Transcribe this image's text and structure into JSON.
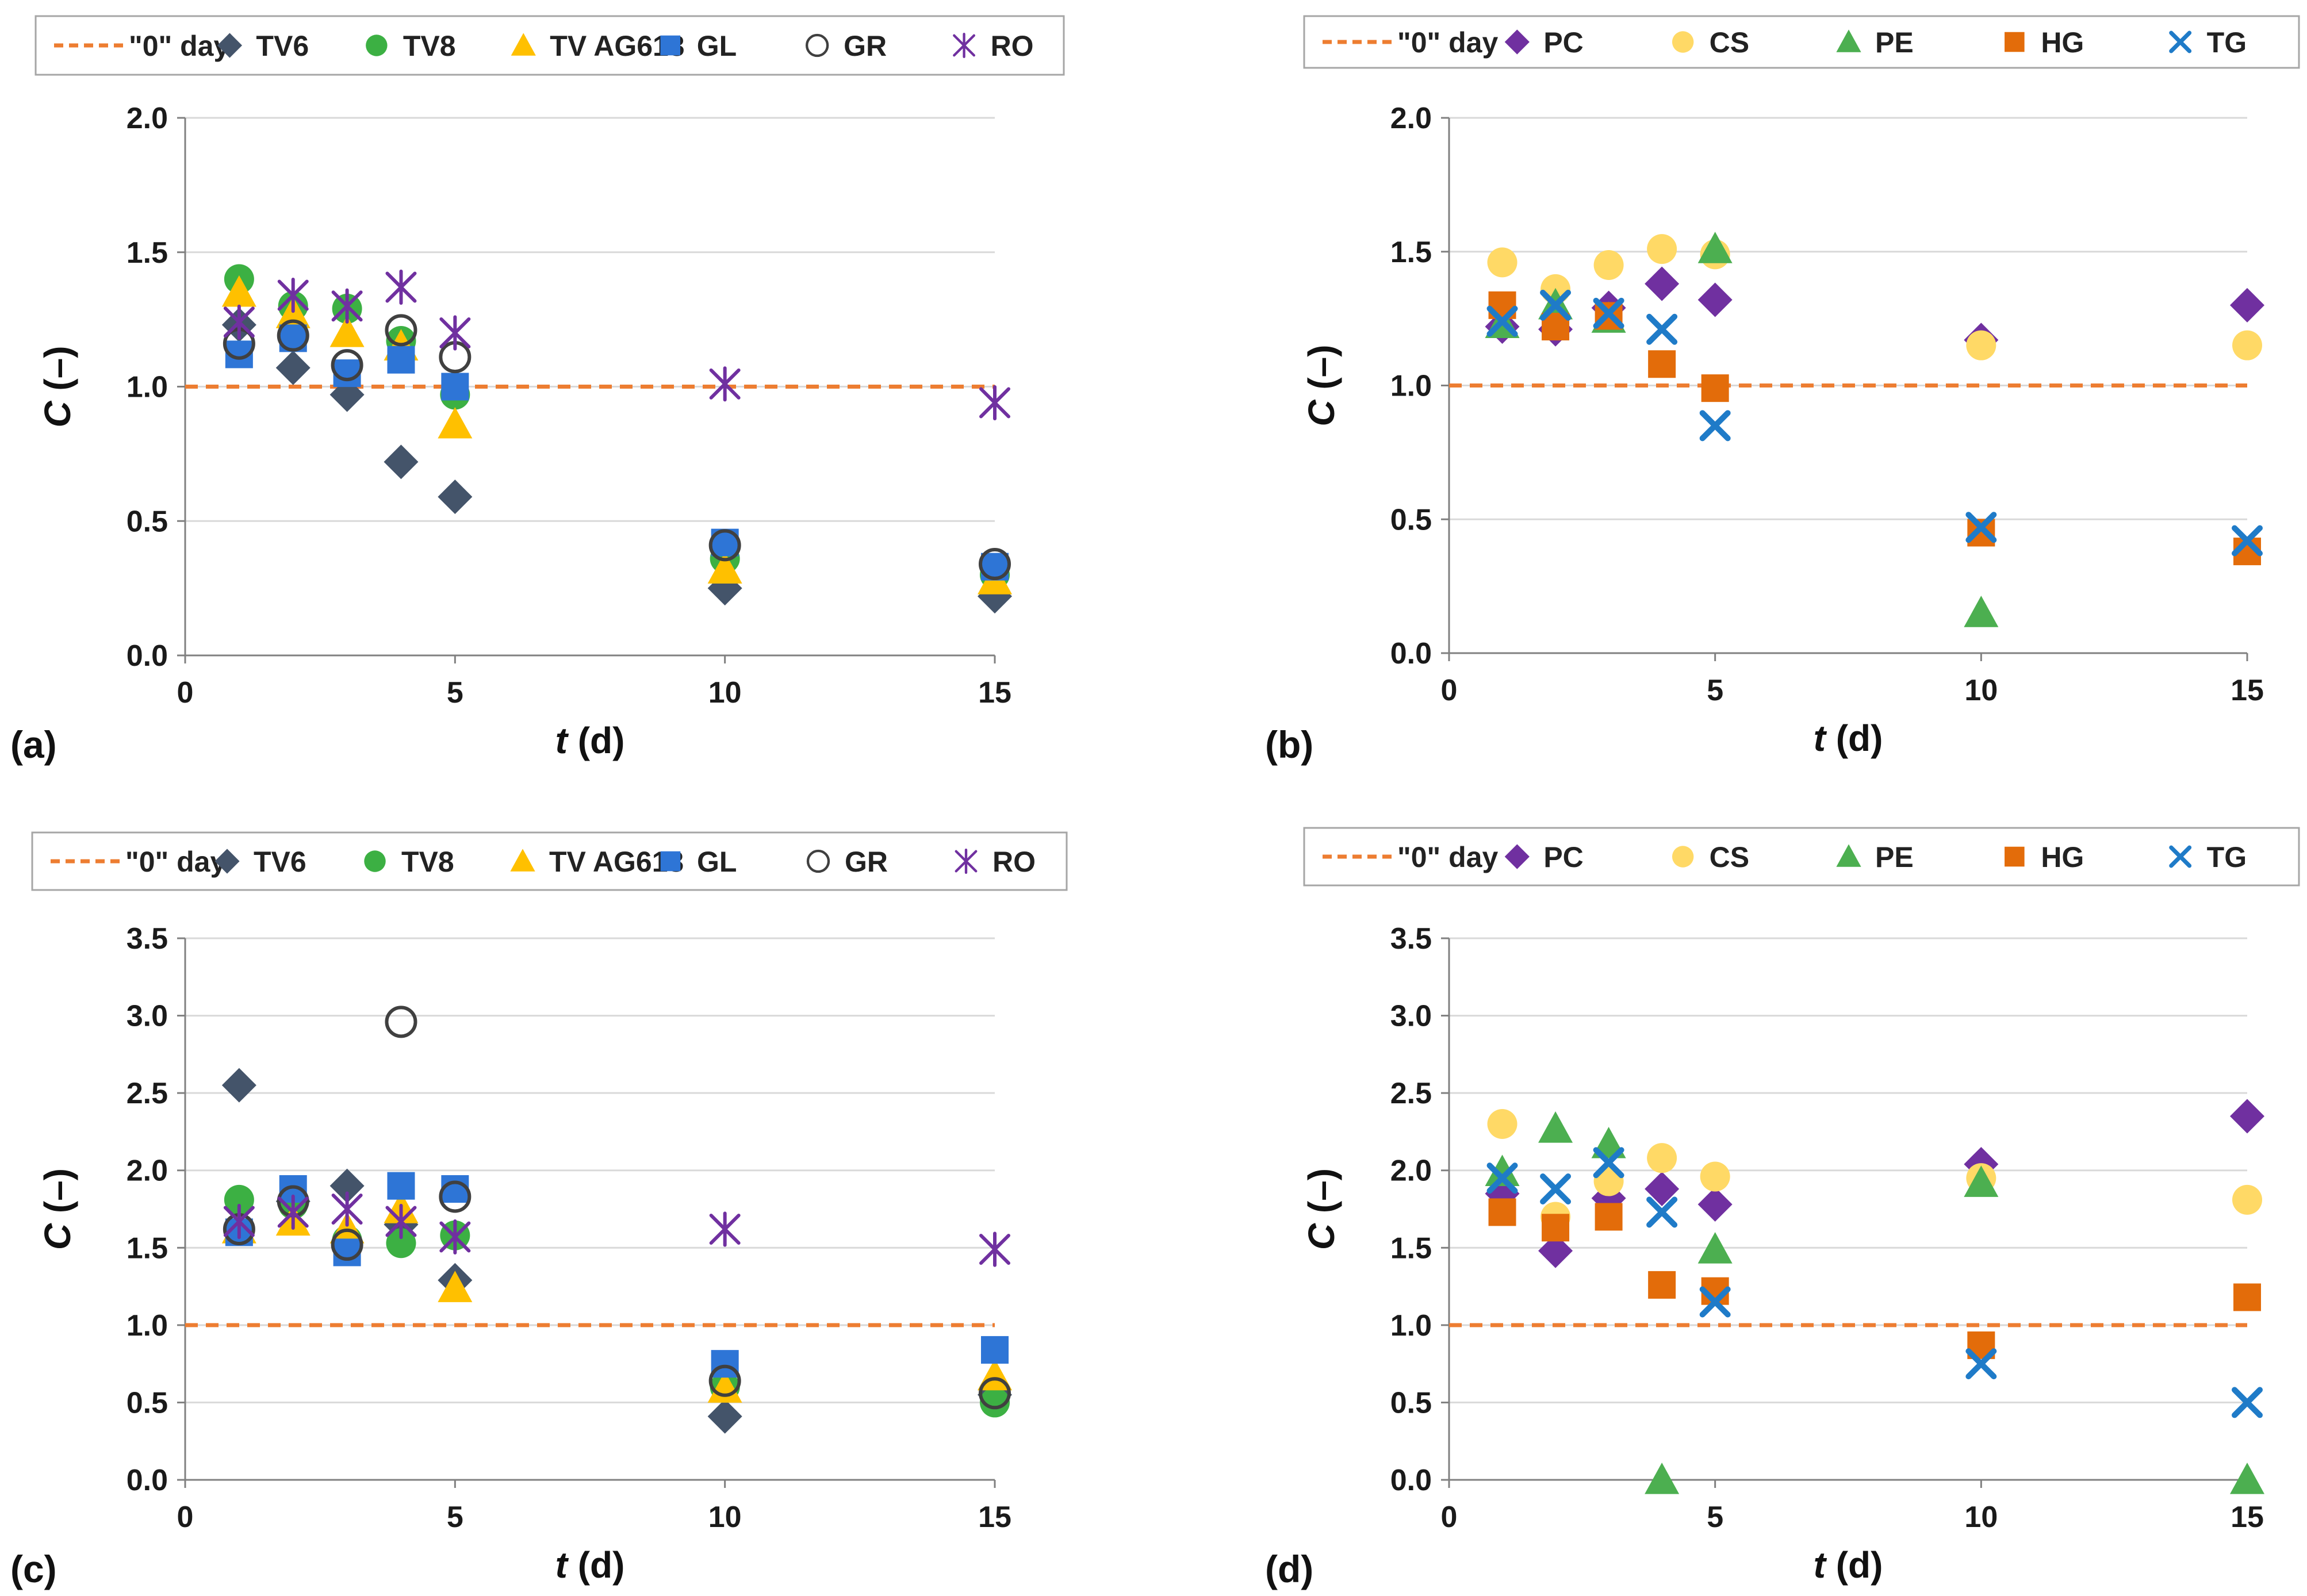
{
  "colors": {
    "zero_line": "#ED7D31",
    "TV6": "#44546A",
    "TV8": "#3CB043",
    "TV AG613": "#FFC000",
    "GL": "#2E75D6",
    "GR": "#404040",
    "RO": "#7030A0",
    "PC": "#7030A0",
    "CS": "#FFD966",
    "PE": "#4CAF50",
    "HG": "#E36C0A",
    "TG": "#1F7BC8"
  },
  "chart_data": [
    {
      "panel_label": "(a)",
      "type": "scatter",
      "xlabel_italic": "t",
      "xlabel_unit": " (d)",
      "ylabel_italic": "C",
      "ylabel_unit": " (–)",
      "xlim": [
        0,
        15
      ],
      "ylim": [
        0,
        2.0
      ],
      "xticks": [
        0,
        5,
        10,
        15
      ],
      "yticks": [
        "0.0",
        "0.5",
        "1.0",
        "1.5",
        "2.0"
      ],
      "legend_position": "top",
      "zero_line": {
        "name": "\"0\" day",
        "y": 1.0
      },
      "series": [
        {
          "name": "TV6",
          "marker": "diamond",
          "x": [
            1,
            2,
            3,
            4,
            5,
            10,
            15
          ],
          "values": [
            1.23,
            1.07,
            0.97,
            0.72,
            0.59,
            0.25,
            0.22
          ]
        },
        {
          "name": "TV8",
          "marker": "circle",
          "x": [
            1,
            2,
            3,
            4,
            5,
            10,
            15
          ],
          "values": [
            1.4,
            1.3,
            1.29,
            1.17,
            0.97,
            0.36,
            0.3
          ]
        },
        {
          "name": "TV AG613",
          "marker": "triangle",
          "x": [
            1,
            2,
            3,
            4,
            5,
            10,
            15
          ],
          "values": [
            1.35,
            1.27,
            1.2,
            1.15,
            0.86,
            0.32,
            0.28
          ]
        },
        {
          "name": "GL",
          "marker": "square",
          "x": [
            1,
            2,
            3,
            4,
            5,
            10,
            15
          ],
          "values": [
            1.12,
            1.18,
            1.05,
            1.1,
            1.0,
            0.42,
            0.33
          ]
        },
        {
          "name": "GR",
          "marker": "open-circle",
          "x": [
            1,
            2,
            3,
            4,
            5,
            10,
            15
          ],
          "values": [
            1.16,
            1.19,
            1.08,
            1.21,
            1.11,
            0.41,
            0.34
          ]
        },
        {
          "name": "RO",
          "marker": "star",
          "x": [
            1,
            2,
            3,
            4,
            5,
            10,
            15
          ],
          "values": [
            1.24,
            1.34,
            1.3,
            1.37,
            1.2,
            1.01,
            0.94
          ]
        }
      ]
    },
    {
      "panel_label": "(b)",
      "type": "scatter",
      "xlabel_italic": "t",
      "xlabel_unit": " (d)",
      "ylabel_italic": "C",
      "ylabel_unit": " (–)",
      "xlim": [
        0,
        15
      ],
      "ylim": [
        0,
        2.0
      ],
      "xticks": [
        0,
        5,
        10,
        15
      ],
      "yticks": [
        "0.0",
        "0.5",
        "1.0",
        "1.5",
        "2.0"
      ],
      "legend_position": "top",
      "zero_line": {
        "name": "\"0\" day",
        "y": 1.0
      },
      "series": [
        {
          "name": "PC",
          "marker": "diamond",
          "x": [
            1,
            2,
            3,
            4,
            5,
            10,
            15
          ],
          "values": [
            1.22,
            1.21,
            1.29,
            1.38,
            1.32,
            1.17,
            1.3
          ]
        },
        {
          "name": "CS",
          "marker": "circle",
          "x": [
            1,
            2,
            3,
            4,
            5,
            10,
            15
          ],
          "values": [
            1.46,
            1.36,
            1.45,
            1.51,
            1.49,
            1.15,
            1.15
          ]
        },
        {
          "name": "PE",
          "marker": "triangle",
          "x": [
            1,
            2,
            3,
            5,
            10
          ],
          "values": [
            1.23,
            1.3,
            1.25,
            1.51,
            0.15
          ]
        },
        {
          "name": "HG",
          "marker": "square",
          "x": [
            1,
            2,
            3,
            4,
            5,
            10,
            15
          ],
          "values": [
            1.3,
            1.22,
            1.26,
            1.08,
            0.99,
            0.45,
            0.38
          ]
        },
        {
          "name": "TG",
          "marker": "x",
          "x": [
            1,
            2,
            3,
            4,
            5,
            10,
            15
          ],
          "values": [
            1.24,
            1.3,
            1.27,
            1.21,
            0.85,
            0.47,
            0.42
          ]
        }
      ]
    },
    {
      "panel_label": "(c)",
      "type": "scatter",
      "xlabel_italic": "t",
      "xlabel_unit": " (d)",
      "ylabel_italic": "C",
      "ylabel_unit": " (–)",
      "xlim": [
        0,
        15
      ],
      "ylim": [
        0,
        3.5
      ],
      "xticks": [
        0,
        5,
        10,
        15
      ],
      "yticks": [
        "0.0",
        "0.5",
        "1.0",
        "1.5",
        "2.0",
        "2.5",
        "3.0",
        "3.5"
      ],
      "legend_position": "top",
      "zero_line": {
        "name": "\"0\" day",
        "y": 1.0
      },
      "series": [
        {
          "name": "TV6",
          "marker": "diamond",
          "x": [
            1,
            2,
            3,
            4,
            5,
            10,
            15
          ],
          "values": [
            2.55,
            1.8,
            1.9,
            1.65,
            1.29,
            0.41,
            0.55
          ]
        },
        {
          "name": "TV8",
          "marker": "circle",
          "x": [
            1,
            2,
            3,
            4,
            5,
            10,
            15
          ],
          "values": [
            1.81,
            1.78,
            1.55,
            1.53,
            1.58,
            0.6,
            0.5
          ]
        },
        {
          "name": "TV AG613",
          "marker": "triangle",
          "x": [
            1,
            2,
            3,
            4,
            5,
            10,
            15
          ],
          "values": [
            1.62,
            1.67,
            1.62,
            1.75,
            1.24,
            0.59,
            0.67
          ]
        },
        {
          "name": "GL",
          "marker": "square",
          "x": [
            1,
            2,
            3,
            4,
            5,
            10,
            15
          ],
          "values": [
            1.6,
            1.88,
            1.47,
            1.9,
            1.88,
            0.75,
            0.84
          ]
        },
        {
          "name": "GR",
          "marker": "open-circle",
          "x": [
            1,
            2,
            3,
            4,
            5,
            10,
            15
          ],
          "values": [
            1.62,
            1.8,
            1.52,
            2.96,
            1.83,
            0.64,
            0.56
          ]
        },
        {
          "name": "RO",
          "marker": "star",
          "x": [
            1,
            2,
            3,
            4,
            5,
            10,
            15
          ],
          "values": [
            1.67,
            1.73,
            1.75,
            1.67,
            1.57,
            1.62,
            1.49
          ]
        }
      ]
    },
    {
      "panel_label": "(d)",
      "type": "scatter",
      "xlabel_italic": "t",
      "xlabel_unit": " (d)",
      "ylabel_italic": "C",
      "ylabel_unit": " (–)",
      "xlim": [
        0,
        15
      ],
      "ylim": [
        0,
        3.5
      ],
      "xticks": [
        0,
        5,
        10,
        15
      ],
      "yticks": [
        "0.0",
        "0.5",
        "1.0",
        "1.5",
        "2.0",
        "2.5",
        "3.0",
        "3.5"
      ],
      "legend_position": "top",
      "zero_line": {
        "name": "\"0\" day",
        "y": 1.0
      },
      "series": [
        {
          "name": "PC",
          "marker": "diamond",
          "x": [
            1,
            2,
            3,
            4,
            5,
            10,
            15
          ],
          "values": [
            1.85,
            1.48,
            1.82,
            1.88,
            1.78,
            2.04,
            2.35
          ]
        },
        {
          "name": "CS",
          "marker": "circle",
          "x": [
            1,
            2,
            3,
            4,
            5,
            10,
            15
          ],
          "values": [
            2.3,
            1.7,
            1.93,
            2.08,
            1.96,
            1.95,
            1.81
          ]
        },
        {
          "name": "PE",
          "marker": "triangle",
          "x": [
            1,
            2,
            3,
            4,
            5,
            10,
            15
          ],
          "values": [
            1.99,
            2.27,
            2.17,
            0.0,
            1.49,
            1.92,
            0.0
          ]
        },
        {
          "name": "HG",
          "marker": "square",
          "x": [
            1,
            2,
            3,
            4,
            5,
            10,
            15
          ],
          "values": [
            1.73,
            1.63,
            1.7,
            1.26,
            1.22,
            0.87,
            1.18
          ]
        },
        {
          "name": "TG",
          "marker": "x",
          "x": [
            1,
            2,
            3,
            4,
            5,
            10,
            15
          ],
          "values": [
            1.95,
            1.88,
            2.05,
            1.73,
            1.15,
            0.75,
            0.5
          ]
        }
      ]
    }
  ]
}
